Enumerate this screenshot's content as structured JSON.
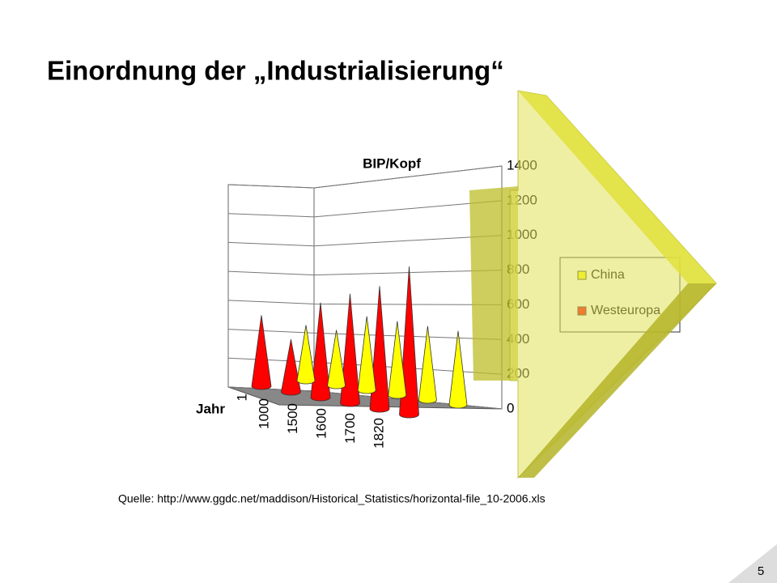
{
  "slide": {
    "title": "Einordnung der „Industrialisierung“",
    "source": "Quelle: http://www.ggdc.net/maddison/Historical_Statistics/horizontal-file_10-2006.xls",
    "page_number": "5"
  },
  "chart_data": {
    "type": "cone3d",
    "title": "BIP/Kopf",
    "x_label": "Jahr",
    "categories": [
      "1",
      "1000",
      "1500",
      "1600",
      "1700",
      "1820"
    ],
    "series": [
      {
        "name": "China",
        "color": "#ffff00",
        "values": [
          450,
          450,
          600,
          600,
          600,
          600
        ]
      },
      {
        "name": "Westeuropa",
        "color": "#ff0000",
        "values": [
          576,
          427,
          771,
          889,
          997,
          1202
        ]
      }
    ],
    "ylim": [
      0,
      1400
    ],
    "yticks": [
      0,
      200,
      400,
      600,
      800,
      1000,
      1200,
      1400
    ],
    "grid": true
  }
}
